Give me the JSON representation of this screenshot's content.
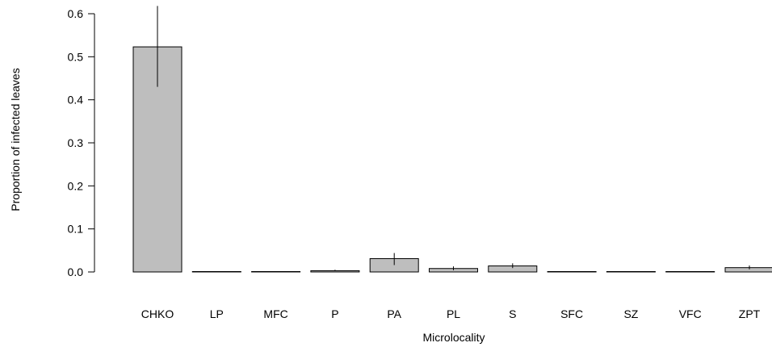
{
  "chart_data": {
    "type": "bar",
    "xlabel": "Microlocality",
    "ylabel": "Proportion of infected leaves",
    "ylim": [
      0,
      0.6
    ],
    "yticks": [
      "0.0",
      "0.1",
      "0.2",
      "0.3",
      "0.4",
      "0.5",
      "0.6"
    ],
    "categories": [
      "CHKO",
      "LP",
      "MFC",
      "P",
      "PA",
      "PL",
      "S",
      "SFC",
      "SZ",
      "VFC",
      "ZPT"
    ],
    "values": [
      0.523,
      0.0,
      0.0,
      0.003,
      0.031,
      0.008,
      0.014,
      0.0,
      0.0,
      0.0,
      0.01
    ],
    "error_low": [
      0.43,
      0.0,
      0.0,
      0.002,
      0.016,
      0.004,
      0.009,
      0.0,
      0.0,
      0.0,
      0.006
    ],
    "error_high": [
      0.618,
      0.0,
      0.0,
      0.005,
      0.044,
      0.013,
      0.02,
      0.001,
      0.0,
      0.0,
      0.015
    ],
    "bar_color": "#bebebe",
    "grid": false,
    "legend": "none"
  }
}
